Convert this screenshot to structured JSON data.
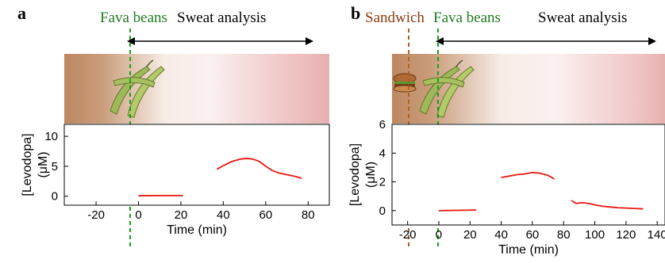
{
  "panels": [
    {
      "letter": "a",
      "events": [
        {
          "label": "Fava beans",
          "color": "#1f7a1f"
        },
        {
          "label": "Sweat analysis",
          "color": "#000000"
        }
      ]
    },
    {
      "letter": "b",
      "events": [
        {
          "label": "Sandwich",
          "color": "#8b3a0f"
        },
        {
          "label": "Fava beans",
          "color": "#1f7a1f"
        },
        {
          "label": "Sweat analysis",
          "color": "#000000"
        }
      ]
    }
  ],
  "colors": {
    "line": "#e8170f",
    "fava_marker": "#16a016",
    "sandwich_marker": "#b0601e",
    "strip_skin": "#c08a64",
    "strip_end": "#e9b3b3"
  },
  "chart_data": [
    {
      "type": "line",
      "title": "",
      "xlabel": "Time (min)",
      "ylabel": "[Levodopa]",
      "ylabel_unit": "(μM)",
      "xlim": [
        -35,
        90
      ],
      "ylim": [
        -1.5,
        12
      ],
      "xticks": [
        -20,
        0,
        20,
        40,
        60,
        80
      ],
      "yticks": [
        0,
        5,
        10
      ],
      "event_markers": [
        {
          "event": "Fava beans",
          "x": 0
        }
      ],
      "series": [
        {
          "segments": [
            {
              "x": [
                0,
                10,
                21
              ],
              "y": [
                0.08,
                0.1,
                0.1
              ]
            },
            {
              "x": [
                37,
                40,
                44,
                48,
                51,
                54,
                57,
                60,
                63,
                66,
                70,
                74,
                77
              ],
              "y": [
                4.5,
                5.1,
                5.8,
                6.2,
                6.3,
                6.2,
                5.8,
                5.0,
                4.3,
                3.9,
                3.6,
                3.3,
                3.0
              ]
            }
          ]
        }
      ]
    },
    {
      "type": "line",
      "title": "",
      "xlabel": "Time (min)",
      "ylabel": "[Levodopa]",
      "ylabel_unit": "(μM)",
      "xlim": [
        -30,
        145
      ],
      "ylim": [
        -1,
        6
      ],
      "xticks": [
        -20,
        0,
        20,
        40,
        60,
        80,
        100,
        120,
        140
      ],
      "yticks": [
        0,
        2,
        4,
        6
      ],
      "event_markers": [
        {
          "event": "Sandwich",
          "x": -23
        },
        {
          "event": "Fava beans",
          "x": 0
        }
      ],
      "series": [
        {
          "segments": [
            {
              "x": [
                0,
                12,
                24
              ],
              "y": [
                0.0,
                0.02,
                0.04
              ]
            },
            {
              "x": [
                40,
                45,
                50,
                55,
                60,
                65,
                70,
                74
              ],
              "y": [
                2.3,
                2.4,
                2.5,
                2.55,
                2.65,
                2.6,
                2.45,
                2.2
              ]
            },
            {
              "x": [
                85,
                88,
                92,
                96,
                100,
                105,
                110,
                115,
                120,
                125,
                131
              ],
              "y": [
                0.7,
                0.5,
                0.55,
                0.5,
                0.4,
                0.3,
                0.25,
                0.2,
                0.18,
                0.15,
                0.12
              ]
            }
          ]
        }
      ]
    }
  ]
}
